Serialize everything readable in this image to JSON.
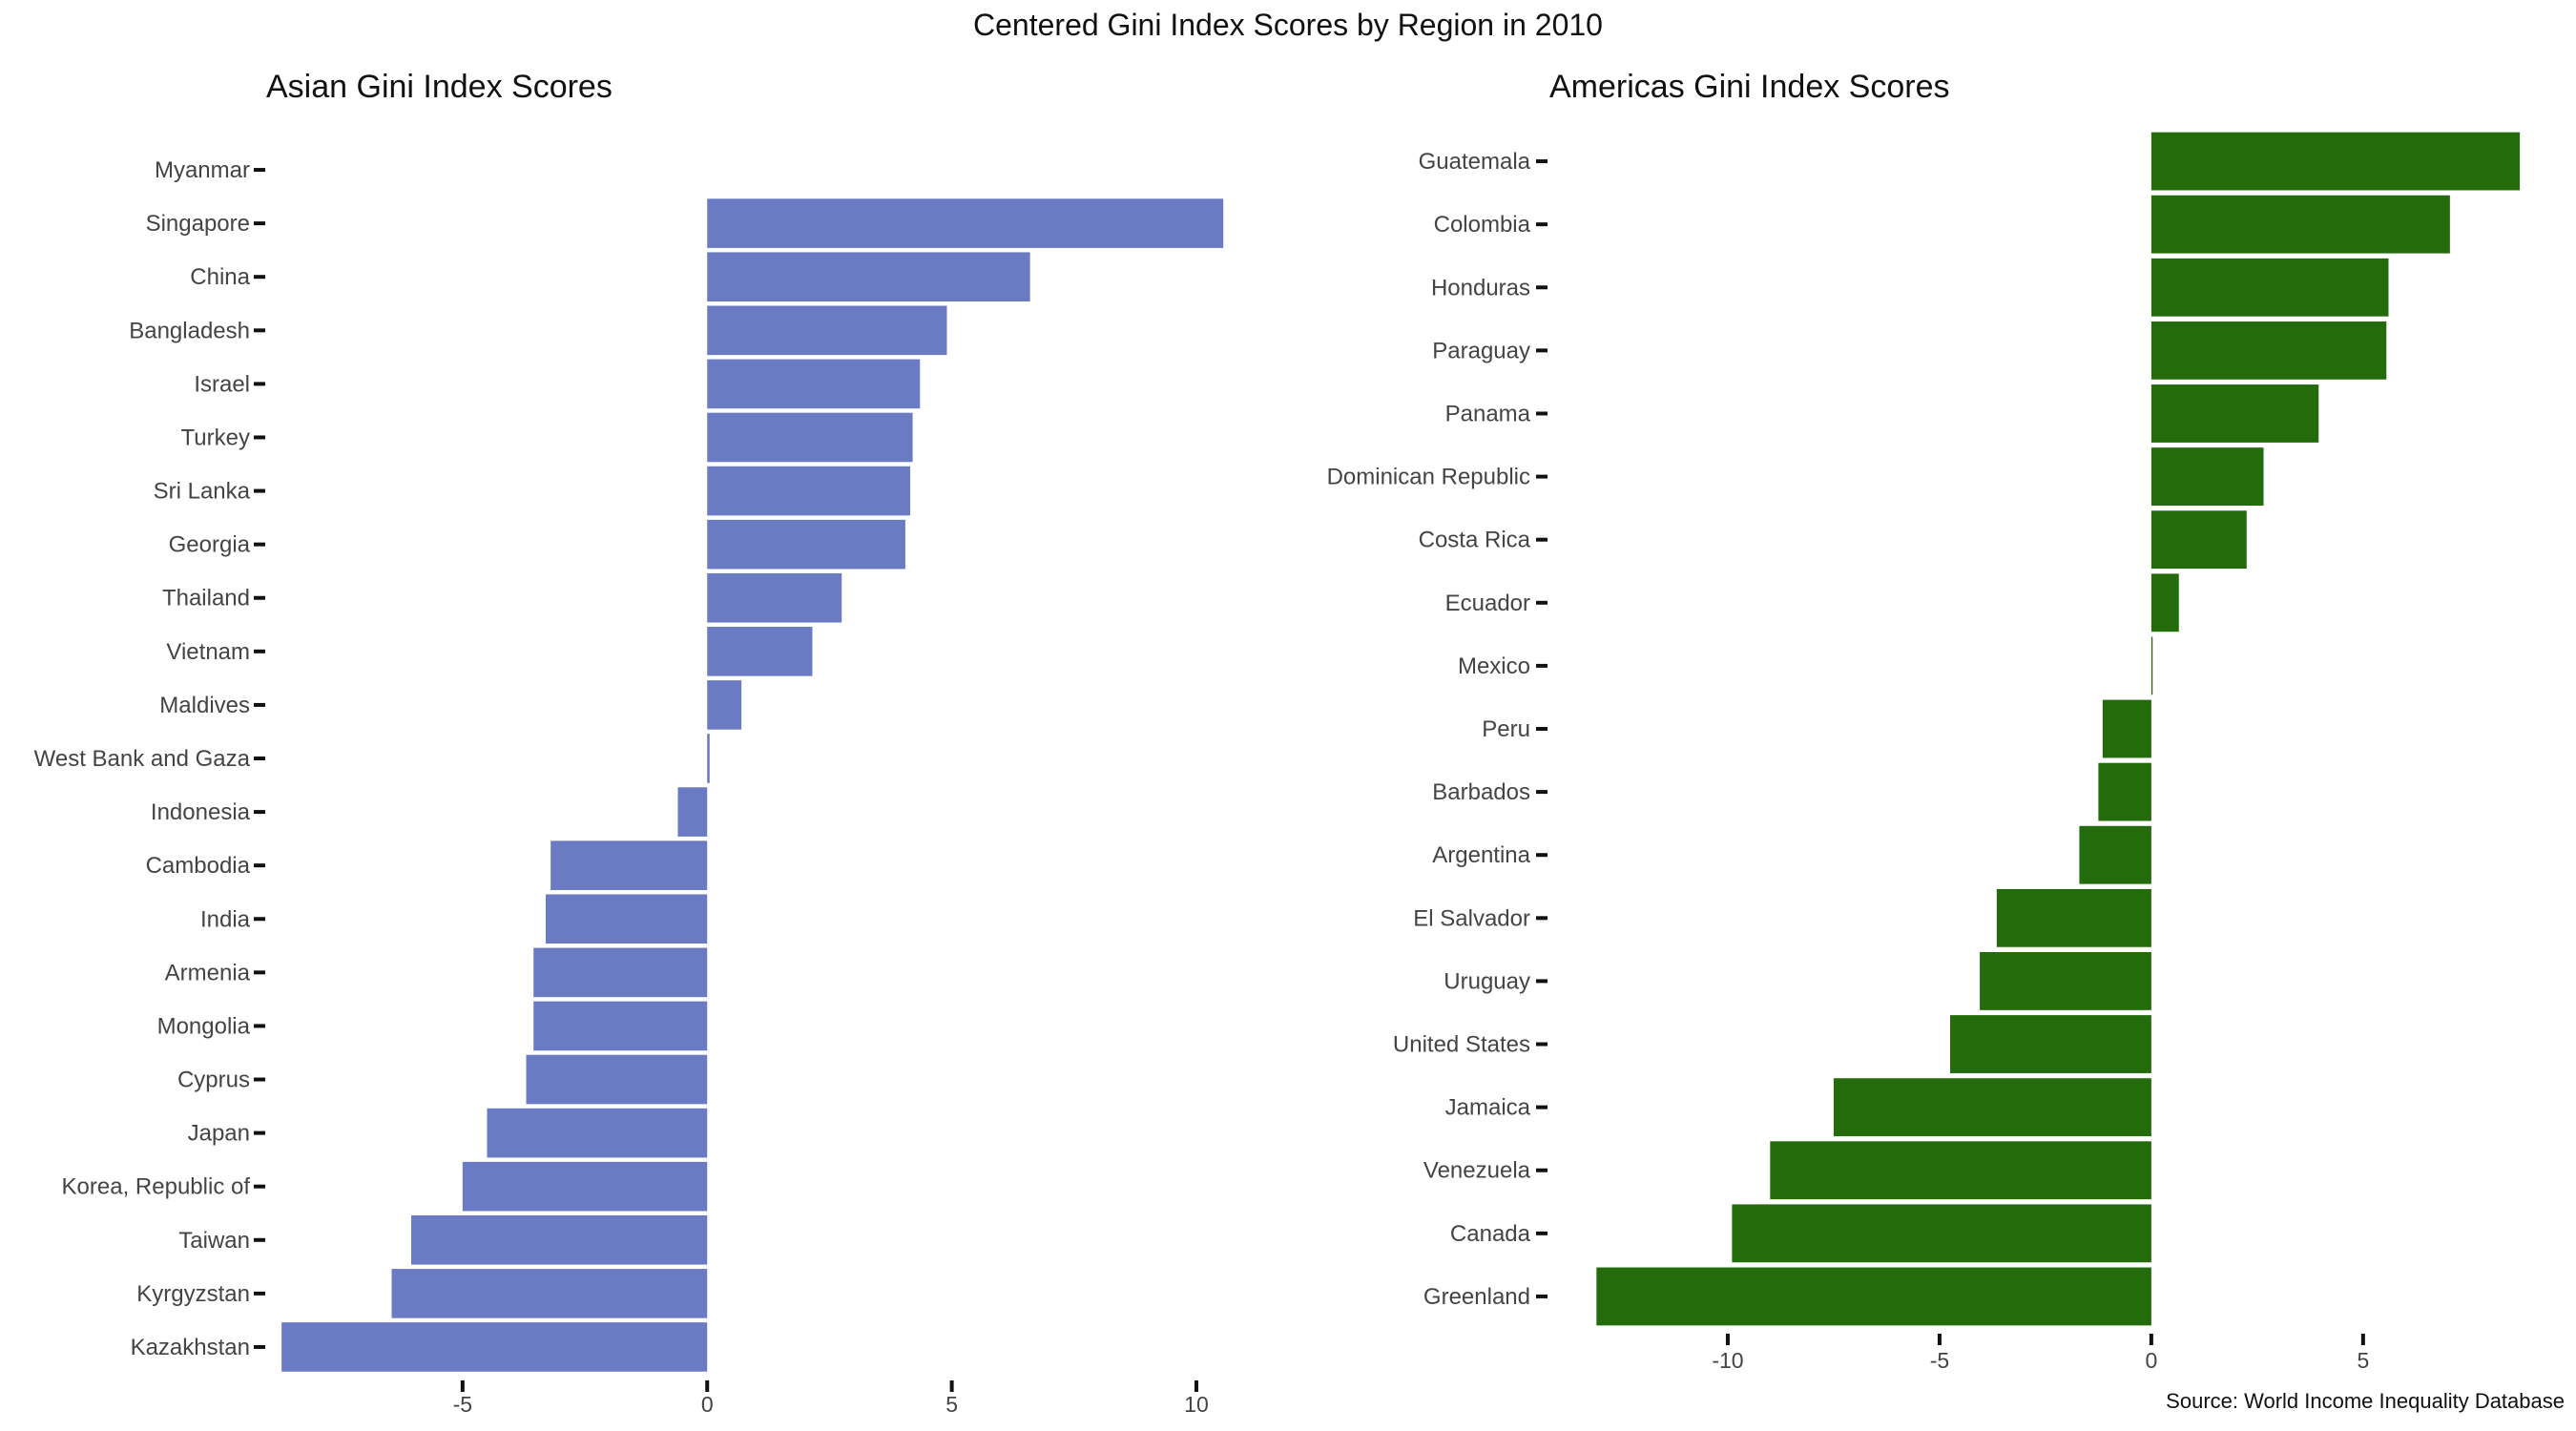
{
  "title": "Centered Gini Index Scores by Region in 2010",
  "source": "Source: World Income Inequality Database",
  "chart_data": [
    {
      "type": "bar",
      "orientation": "horizontal",
      "title": "Asian Gini Index Scores",
      "color": "#6a7bc4",
      "xlim": [
        -8.8,
        10.8
      ],
      "xticks": [
        -5,
        0,
        5,
        10
      ],
      "xtick_labels": [
        "-5",
        "0",
        "5",
        "10"
      ],
      "grid": false,
      "categories": [
        "Myanmar",
        "Singapore",
        "China",
        "Bangladesh",
        "Israel",
        "Turkey",
        "Sri Lanka",
        "Georgia",
        "Thailand",
        "Vietnam",
        "Maldives",
        "West Bank and Gaza",
        "Indonesia",
        "Cambodia",
        "India",
        "Armenia",
        "Mongolia",
        "Cyprus",
        "Japan",
        "Korea, Republic of",
        "Taiwan",
        "Kyrgyzstan",
        "Kazakhstan"
      ],
      "values": [
        null,
        10.55,
        6.6,
        4.9,
        4.35,
        4.2,
        4.15,
        4.05,
        2.75,
        2.15,
        0.7,
        0.05,
        -0.6,
        -3.2,
        -3.3,
        -3.55,
        -3.55,
        -3.7,
        -4.5,
        -5.0,
        -6.05,
        -6.45,
        -8.7
      ]
    },
    {
      "type": "bar",
      "orientation": "horizontal",
      "title": "Americas Gini Index Scores",
      "color": "#236b0b",
      "xlim": [
        -13.4,
        8.9
      ],
      "xticks": [
        -10,
        -5,
        0,
        5
      ],
      "xtick_labels": [
        "-10",
        "-5",
        "0",
        "5"
      ],
      "grid": false,
      "categories": [
        "Guatemala",
        "Colombia",
        "Honduras",
        "Paraguay",
        "Panama",
        "Dominican Republic",
        "Costa Rica",
        "Ecuador",
        "Mexico",
        "Peru",
        "Barbados",
        "Argentina",
        "El Salvador",
        "Uruguay",
        "United States",
        "Jamaica",
        "Venezuela",
        "Canada",
        "Greenland"
      ],
      "values": [
        8.7,
        7.05,
        5.6,
        5.55,
        3.95,
        2.65,
        2.25,
        0.65,
        0.03,
        -1.15,
        -1.25,
        -1.7,
        -3.65,
        -4.05,
        -4.75,
        -7.5,
        -9.0,
        -9.9,
        -13.1
      ]
    }
  ]
}
